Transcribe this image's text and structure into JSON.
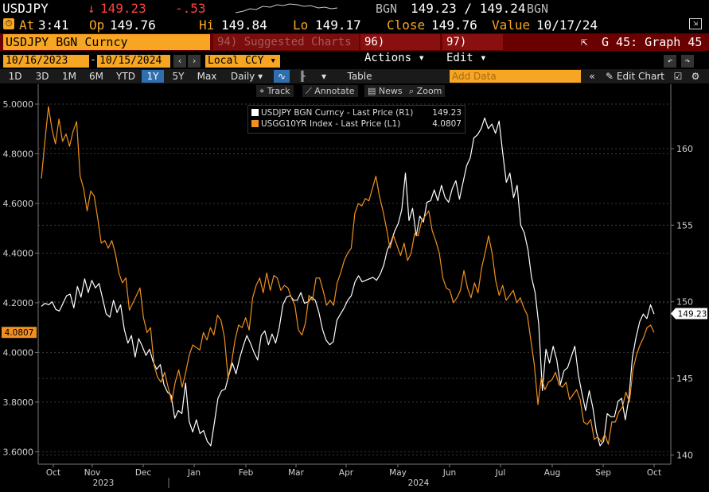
{
  "ticker": {
    "symbol": "USDJPY",
    "arrow": "↓",
    "price": "149.23",
    "change": "-.53",
    "source": "BGN",
    "bid_ask": "149.23 / 149.24",
    "source2": "BGN"
  },
  "quote": {
    "at_label": "At",
    "at_time": "3:41",
    "op_label": "Op",
    "op": "149.76",
    "hi_label": "Hi",
    "hi": "149.84",
    "lo_label": "Lo",
    "lo": "149.17",
    "close_label": "Close",
    "close": "149.76",
    "value_label": "Value",
    "value_date": "10/17/24"
  },
  "toolbar": {
    "security": "USDJPY BGN Curncy",
    "suggested": "94) Suggested Charts",
    "actions": "96) Actions",
    "edit": "97) Edit",
    "graph": "G 45: Graph 45",
    "start_date": "10/16/2023",
    "end_date": "10/15/2024",
    "currency": "Local CCY"
  },
  "periods": [
    "1D",
    "3D",
    "1M",
    "6M",
    "YTD",
    "1Y",
    "5Y",
    "Max"
  ],
  "selected_period": "1Y",
  "frequency": "Daily",
  "table_label": "Table",
  "add_data_placeholder": "Add Data",
  "edit_chart": "Edit Chart",
  "tools": {
    "track": "Track",
    "annotate": "Annotate",
    "news": "News",
    "zoom": "Zoom"
  },
  "legend": [
    {
      "name": "USDJPY BGN Curncy - Last Price (R1)",
      "value": "149.23",
      "color": "#ffffff"
    },
    {
      "name": "USGG10YR Index - Last Price (L1)",
      "value": "4.0807",
      "color": "#f0901e"
    }
  ],
  "chart_data": {
    "type": "line",
    "left_axis": {
      "ticks": [
        "5.0000",
        "4.8000",
        "4.6000",
        "4.4000",
        "4.2000",
        "4.0000",
        "3.8000",
        "3.6000"
      ],
      "range": [
        3.55,
        5.08
      ],
      "marker": "4.0807"
    },
    "right_axis": {
      "ticks": [
        "160",
        "155",
        "150",
        "145",
        "140"
      ],
      "range": [
        139.4,
        164.2
      ],
      "marker": "149.23"
    },
    "months": [
      "Oct",
      "Nov",
      "Dec",
      "Jan",
      "Feb",
      "Mar",
      "Apr",
      "May",
      "Jun",
      "Jul",
      "Aug",
      "Sep",
      "Oct"
    ],
    "years": [
      "2023",
      "2024"
    ],
    "series": [
      {
        "name": "USDJPY BGN Curncy - Last Price (R1)",
        "axis": "right",
        "color": "#ffffff",
        "values": [
          149.7,
          149.9,
          149.8,
          150.0,
          149.5,
          149.4,
          149.9,
          150.4,
          150.5,
          149.6,
          151.0,
          150.3,
          151.5,
          150.6,
          151.4,
          150.9,
          151.2,
          150.2,
          149.2,
          149.0,
          150.1,
          149.3,
          149.8,
          148.2,
          147.3,
          147.8,
          146.4,
          147.6,
          147.1,
          146.5,
          146.9,
          146.1,
          145.6,
          145.9,
          144.6,
          144.1,
          143.9,
          142.4,
          142.9,
          142.7,
          144.7,
          142.2,
          141.5,
          142.3,
          141.4,
          141.6,
          140.9,
          140.6,
          142.1,
          143.7,
          144.2,
          144.3,
          145.2,
          146.0,
          145.3,
          146.3,
          147.1,
          147.8,
          147.3,
          146.7,
          146.2,
          147.8,
          148.1,
          147.2,
          147.9,
          147.3,
          148.3,
          149.8,
          150.3,
          150.4,
          150.1,
          150.1,
          150.6,
          149.9,
          150.0,
          150.3,
          150.1,
          149.3,
          148.2,
          147.5,
          147.2,
          147.4,
          148.8,
          149.2,
          149.6,
          150.1,
          150.4,
          151.3,
          151.7,
          151.3,
          151.4,
          151.5,
          151.6,
          151.4,
          151.8,
          152.4,
          153.4,
          153.9,
          154.6,
          155.1,
          156.0,
          158.4,
          155.3,
          156.1,
          154.3,
          155.6,
          155.2,
          156.5,
          156.6,
          157.3,
          156.6,
          157.6,
          156.8,
          156.5,
          157.4,
          157.9,
          156.7,
          157.8,
          158.9,
          159.4,
          160.7,
          160.9,
          161.3,
          162.0,
          161.3,
          161.6,
          161.0,
          161.8,
          159.7,
          157.8,
          158.4,
          156.8,
          157.6,
          155.0,
          154.5,
          153.4,
          151.6,
          150.6,
          148.5,
          144.2,
          146.9,
          146.0,
          147.1,
          146.2,
          144.6,
          145.5,
          145.7,
          146.4,
          147.1,
          145.2,
          144.0,
          142.9,
          144.2,
          143.1,
          141.5,
          140.6,
          140.9,
          142.7,
          142.5,
          142.5,
          143.5,
          143.7,
          142.3,
          143.7,
          146.4,
          147.7,
          148.7,
          149.2,
          148.9,
          149.8,
          149.2
        ]
      },
      {
        "name": "USGG10YR Index - Last Price (L1)",
        "axis": "left",
        "color": "#f0901e",
        "values": [
          4.7,
          4.85,
          4.99,
          4.9,
          4.84,
          4.94,
          4.85,
          4.88,
          4.83,
          4.89,
          4.93,
          4.71,
          4.66,
          4.57,
          4.65,
          4.63,
          4.54,
          4.44,
          4.45,
          4.42,
          4.45,
          4.4,
          4.32,
          4.28,
          4.3,
          4.17,
          4.2,
          4.23,
          4.26,
          4.14,
          4.08,
          4.1,
          3.95,
          3.9,
          3.88,
          3.92,
          3.86,
          3.8,
          3.88,
          3.93,
          3.86,
          3.92,
          3.99,
          4.03,
          4.02,
          4.01,
          4.08,
          4.05,
          4.1,
          4.07,
          4.15,
          4.13,
          4.06,
          3.9,
          3.96,
          4.05,
          4.11,
          4.1,
          4.14,
          4.09,
          4.22,
          4.27,
          4.3,
          4.24,
          4.32,
          4.25,
          4.31,
          4.3,
          4.25,
          4.27,
          4.26,
          4.22,
          4.19,
          4.09,
          4.07,
          4.12,
          4.23,
          4.21,
          4.3,
          4.3,
          4.25,
          4.19,
          4.21,
          4.19,
          4.28,
          4.32,
          4.37,
          4.4,
          4.42,
          4.56,
          4.6,
          4.59,
          4.62,
          4.61,
          4.66,
          4.71,
          4.63,
          4.57,
          4.5,
          4.42,
          4.47,
          4.43,
          4.39,
          4.44,
          4.37,
          4.4,
          4.48,
          4.47,
          4.53,
          4.55,
          4.57,
          4.49,
          4.45,
          4.4,
          4.3,
          4.26,
          4.25,
          4.2,
          4.22,
          4.25,
          4.33,
          4.26,
          4.22,
          4.28,
          4.24,
          4.34,
          4.4,
          4.47,
          4.4,
          4.29,
          4.23,
          4.27,
          4.21,
          4.23,
          4.25,
          4.2,
          4.22,
          4.18,
          4.15,
          4.05,
          3.95,
          3.79,
          3.9,
          3.85,
          3.88,
          3.89,
          3.92,
          3.87,
          3.86,
          3.88,
          3.81,
          3.83,
          3.85,
          3.81,
          3.72,
          3.71,
          3.73,
          3.65,
          3.66,
          3.64,
          3.67,
          3.63,
          3.72,
          3.72,
          3.76,
          3.78,
          3.84,
          3.8,
          3.93,
          3.99,
          4.03,
          4.06,
          4.1,
          4.11,
          4.08
        ]
      }
    ]
  }
}
